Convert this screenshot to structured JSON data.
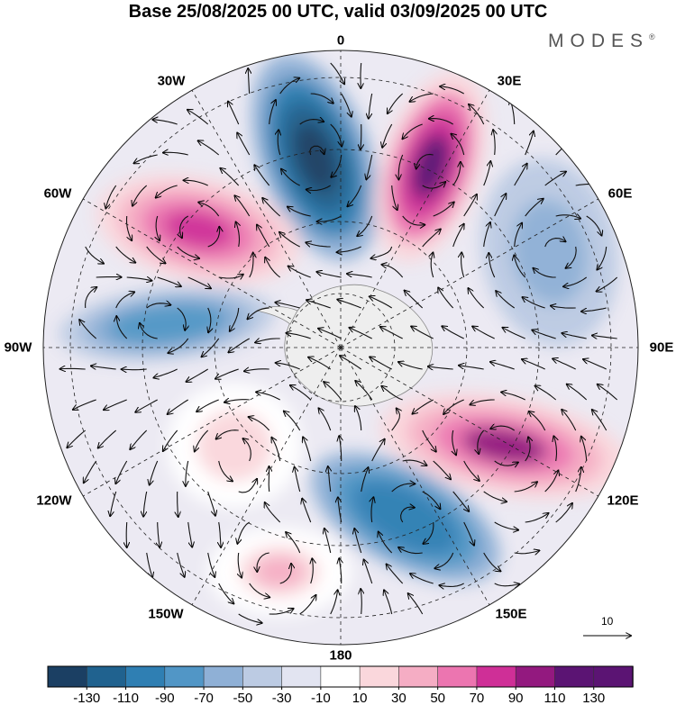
{
  "title": "Base 25/08/2025 00 UTC, valid 03/09/2025 00 UTC",
  "brand": "MODES",
  "brand_mark": "®",
  "longitude_labels": {
    "lon_0": "0",
    "lon_30e": "30E",
    "lon_60e": "60E",
    "lon_90e": "90E",
    "lon_120e": "120E",
    "lon_150e": "150E",
    "lon_180": "180",
    "lon_150w": "150W",
    "lon_120w": "120W",
    "lon_90w": "90W",
    "lon_60w": "60W",
    "lon_30w": "30W"
  },
  "reference_vector": {
    "label": "10"
  },
  "colorbar": {
    "tick_labels": [
      "-130",
      "-110",
      "-90",
      "-70",
      "-50",
      "-30",
      "-10",
      "10",
      "30",
      "50",
      "70",
      "90",
      "110",
      "130"
    ],
    "colors": [
      "#1b3f63",
      "#20628f",
      "#2f7fb3",
      "#5196c6",
      "#8fb0d6",
      "#bccbe3",
      "#e2e4f1",
      "#ffffff",
      "#fad7dc",
      "#f5adc4",
      "#ec75b0",
      "#cf2f97",
      "#93197f",
      "#5b1473"
    ]
  },
  "anomaly_centers": [
    {
      "name": "north-negative",
      "value": -130
    },
    {
      "name": "north-east-positive",
      "value": 130
    },
    {
      "name": "north-west-positive",
      "value": 100
    },
    {
      "name": "west-negative",
      "value": -70
    },
    {
      "name": "east-positive",
      "value": 110
    },
    {
      "name": "south-east-negative",
      "value": -90
    },
    {
      "name": "north-east-weak-negative",
      "value": -50
    },
    {
      "name": "south-west-weak-positive",
      "value": 40
    },
    {
      "name": "south-weak-positive",
      "value": 50
    }
  ]
}
